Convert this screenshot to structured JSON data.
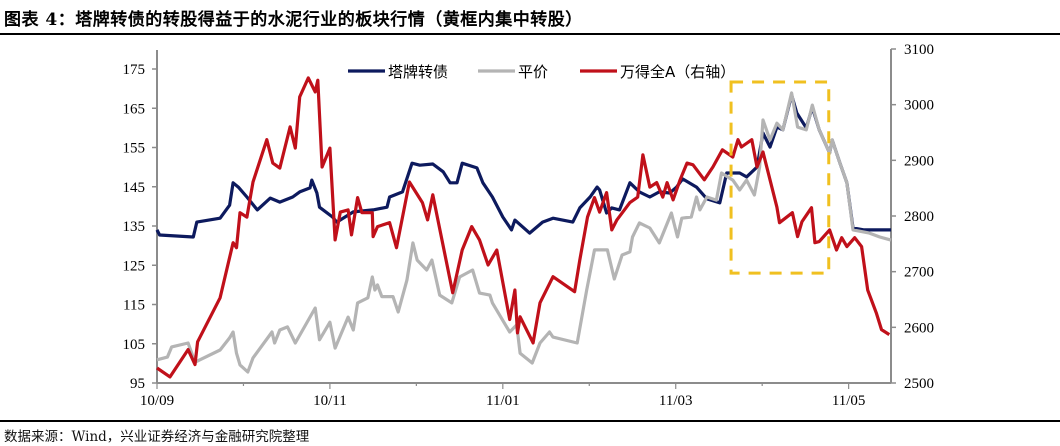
{
  "title": "图表 4：塔牌转债的转股得益于的水泥行业的板块行情（黄框内集中转股）",
  "source": "数据来源：Wind，兴业证券经济与金融研究院整理",
  "chart_data": {
    "type": "line",
    "title": "图表 4：塔牌转债的转股得益于的水泥行业的板块行情（黄框内集中转股）",
    "x_unit": "months since 2010/09",
    "x_range": [
      0,
      8.49
    ],
    "x_ticks": [
      {
        "value": 0,
        "label": "10/09"
      },
      {
        "value": 2,
        "label": "10/11"
      },
      {
        "value": 4,
        "label": "11/01"
      },
      {
        "value": 6,
        "label": "11/03"
      },
      {
        "value": 8,
        "label": "11/05"
      }
    ],
    "y_left": {
      "range": [
        95,
        175
      ],
      "ticks": [
        "95",
        "105",
        "115",
        "125",
        "135",
        "145",
        "155",
        "165",
        "175"
      ]
    },
    "y_right": {
      "range": [
        2500,
        3100
      ],
      "ticks": [
        "2500",
        "2600",
        "2700",
        "2800",
        "2900",
        "3000",
        "3100"
      ]
    },
    "grid": false,
    "legend_position": "top-center",
    "colors": {
      "bond": "#0d1a5e",
      "parity": "#b4b4b4",
      "index": "#c0101a",
      "box": "#f0c020"
    },
    "series": [
      {
        "name": "塔牌转债",
        "axis": "left",
        "color_key": "bond",
        "points": [
          [
            0,
            134.0
          ],
          [
            0.03,
            132.7
          ],
          [
            0.42,
            132.2
          ],
          [
            0.46,
            136.0
          ],
          [
            0.73,
            137.0
          ],
          [
            0.84,
            140.3
          ],
          [
            0.88,
            146.0
          ],
          [
            0.94,
            144.9
          ],
          [
            1.04,
            142.4
          ],
          [
            1.16,
            139.1
          ],
          [
            1.31,
            142.1
          ],
          [
            1.42,
            141.1
          ],
          [
            1.57,
            142.4
          ],
          [
            1.65,
            143.7
          ],
          [
            1.77,
            144.7
          ],
          [
            1.79,
            146.7
          ],
          [
            1.85,
            143.4
          ],
          [
            1.88,
            139.8
          ],
          [
            2.03,
            137.3
          ],
          [
            2.08,
            136.0
          ],
          [
            2.27,
            138.6
          ],
          [
            2.5,
            139.1
          ],
          [
            2.66,
            139.8
          ],
          [
            2.69,
            142.4
          ],
          [
            2.84,
            143.7
          ],
          [
            2.95,
            151.0
          ],
          [
            3.04,
            150.5
          ],
          [
            3.19,
            150.8
          ],
          [
            3.31,
            148.8
          ],
          [
            3.39,
            146.0
          ],
          [
            3.47,
            146.0
          ],
          [
            3.53,
            151.0
          ],
          [
            3.7,
            149.8
          ],
          [
            3.77,
            146.0
          ],
          [
            3.88,
            142.4
          ],
          [
            4.0,
            137.3
          ],
          [
            4.1,
            134.0
          ],
          [
            4.14,
            136.5
          ],
          [
            4.31,
            133.2
          ],
          [
            4.46,
            136.0
          ],
          [
            4.58,
            137.0
          ],
          [
            4.81,
            136.0
          ],
          [
            4.89,
            139.6
          ],
          [
            5.01,
            142.4
          ],
          [
            5.09,
            144.9
          ],
          [
            5.12,
            144.2
          ],
          [
            5.2,
            138.3
          ],
          [
            5.26,
            139.6
          ],
          [
            5.35,
            139.1
          ],
          [
            5.47,
            146.0
          ],
          [
            5.58,
            143.7
          ],
          [
            5.7,
            142.4
          ],
          [
            5.81,
            143.7
          ],
          [
            5.93,
            143.4
          ],
          [
            6.01,
            144.9
          ],
          [
            6.08,
            147.0
          ],
          [
            6.24,
            144.9
          ],
          [
            6.36,
            141.9
          ],
          [
            6.51,
            140.9
          ],
          [
            6.59,
            148.5
          ],
          [
            6.74,
            148.5
          ],
          [
            6.82,
            147.5
          ],
          [
            6.94,
            150.0
          ],
          [
            7.01,
            158.7
          ],
          [
            7.09,
            155.1
          ],
          [
            7.17,
            160.2
          ],
          [
            7.24,
            159.5
          ],
          [
            7.34,
            168.4
          ],
          [
            7.4,
            163.8
          ],
          [
            7.51,
            160.0
          ],
          [
            7.58,
            165.3
          ],
          [
            7.66,
            159.5
          ],
          [
            7.78,
            153.6
          ],
          [
            7.81,
            156.9
          ],
          [
            7.9,
            151.0
          ],
          [
            7.98,
            146.0
          ],
          [
            8.05,
            134.5
          ],
          [
            8.18,
            134.0
          ],
          [
            8.32,
            134.0
          ],
          [
            8.49,
            134.0
          ]
        ]
      },
      {
        "name": "平价",
        "axis": "left",
        "color_key": "parity",
        "points": [
          [
            0,
            100.9
          ],
          [
            0.12,
            101.6
          ],
          [
            0.17,
            104.2
          ],
          [
            0.36,
            105.2
          ],
          [
            0.44,
            100.3
          ],
          [
            0.73,
            103.4
          ],
          [
            0.84,
            106.5
          ],
          [
            0.88,
            108.0
          ],
          [
            0.92,
            102.6
          ],
          [
            0.96,
            99.6
          ],
          [
            1.05,
            97.8
          ],
          [
            1.11,
            101.4
          ],
          [
            1.33,
            108.0
          ],
          [
            1.36,
            105.2
          ],
          [
            1.42,
            108.5
          ],
          [
            1.51,
            109.3
          ],
          [
            1.6,
            105.2
          ],
          [
            1.83,
            114.1
          ],
          [
            1.88,
            106.0
          ],
          [
            2.0,
            110.5
          ],
          [
            2.06,
            103.9
          ],
          [
            2.21,
            111.8
          ],
          [
            2.27,
            108.5
          ],
          [
            2.32,
            115.4
          ],
          [
            2.44,
            116.7
          ],
          [
            2.49,
            122.0
          ],
          [
            2.52,
            118.7
          ],
          [
            2.55,
            120.0
          ],
          [
            2.6,
            117.0
          ],
          [
            2.73,
            117.0
          ],
          [
            2.79,
            113.1
          ],
          [
            2.89,
            121.2
          ],
          [
            2.96,
            130.7
          ],
          [
            3.01,
            126.3
          ],
          [
            3.12,
            123.8
          ],
          [
            3.18,
            126.3
          ],
          [
            3.27,
            117.4
          ],
          [
            3.41,
            115.4
          ],
          [
            3.5,
            122.0
          ],
          [
            3.65,
            123.8
          ],
          [
            3.73,
            117.9
          ],
          [
            3.85,
            117.4
          ],
          [
            3.88,
            115.4
          ],
          [
            4.08,
            108.0
          ],
          [
            4.16,
            109.8
          ],
          [
            4.2,
            102.6
          ],
          [
            4.34,
            100.1
          ],
          [
            4.43,
            105.2
          ],
          [
            4.54,
            108.0
          ],
          [
            4.58,
            106.7
          ],
          [
            4.86,
            105.2
          ],
          [
            4.97,
            118.7
          ],
          [
            5.06,
            128.9
          ],
          [
            5.21,
            128.9
          ],
          [
            5.29,
            121.5
          ],
          [
            5.38,
            127.6
          ],
          [
            5.47,
            128.4
          ],
          [
            5.5,
            132.2
          ],
          [
            5.58,
            135.8
          ],
          [
            5.7,
            134.5
          ],
          [
            5.81,
            130.7
          ],
          [
            5.95,
            138.3
          ],
          [
            6.02,
            132.2
          ],
          [
            6.07,
            137.0
          ],
          [
            6.18,
            137.3
          ],
          [
            6.24,
            142.4
          ],
          [
            6.28,
            139.1
          ],
          [
            6.36,
            142.4
          ],
          [
            6.47,
            141.6
          ],
          [
            6.53,
            148.5
          ],
          [
            6.66,
            146.7
          ],
          [
            6.74,
            144.2
          ],
          [
            6.82,
            146.7
          ],
          [
            6.91,
            142.9
          ],
          [
            6.97,
            150.0
          ],
          [
            7.01,
            162.0
          ],
          [
            7.09,
            156.9
          ],
          [
            7.17,
            161.2
          ],
          [
            7.24,
            159.5
          ],
          [
            7.34,
            168.9
          ],
          [
            7.41,
            160.2
          ],
          [
            7.51,
            159.5
          ],
          [
            7.58,
            165.8
          ],
          [
            7.66,
            159.5
          ],
          [
            7.78,
            153.6
          ],
          [
            7.81,
            156.9
          ],
          [
            7.9,
            151.0
          ],
          [
            7.98,
            146.0
          ],
          [
            8.05,
            134.0
          ],
          [
            8.24,
            133.2
          ],
          [
            8.36,
            132.2
          ],
          [
            8.49,
            131.4
          ]
        ]
      },
      {
        "name": "万得全A（右轴）",
        "axis": "right",
        "color_key": "index",
        "points": [
          [
            0,
            2527
          ],
          [
            0.15,
            2511
          ],
          [
            0.36,
            2560
          ],
          [
            0.44,
            2533
          ],
          [
            0.47,
            2574
          ],
          [
            0.73,
            2653
          ],
          [
            0.88,
            2752
          ],
          [
            0.92,
            2743
          ],
          [
            0.96,
            2806
          ],
          [
            1.04,
            2798
          ],
          [
            1.11,
            2861
          ],
          [
            1.27,
            2937
          ],
          [
            1.34,
            2895
          ],
          [
            1.42,
            2886
          ],
          [
            1.54,
            2960
          ],
          [
            1.6,
            2922
          ],
          [
            1.65,
            3014
          ],
          [
            1.75,
            3048
          ],
          [
            1.83,
            3023
          ],
          [
            1.86,
            3044
          ],
          [
            1.91,
            2888
          ],
          [
            2.0,
            2922
          ],
          [
            2.06,
            2757
          ],
          [
            2.12,
            2807
          ],
          [
            2.21,
            2811
          ],
          [
            2.25,
            2766
          ],
          [
            2.32,
            2833
          ],
          [
            2.37,
            2806
          ],
          [
            2.49,
            2806
          ],
          [
            2.5,
            2763
          ],
          [
            2.55,
            2781
          ],
          [
            2.69,
            2788
          ],
          [
            2.77,
            2743
          ],
          [
            2.92,
            2861
          ],
          [
            3.07,
            2824
          ],
          [
            3.13,
            2793
          ],
          [
            3.19,
            2838
          ],
          [
            3.42,
            2662
          ],
          [
            3.53,
            2739
          ],
          [
            3.64,
            2781
          ],
          [
            3.73,
            2757
          ],
          [
            3.83,
            2712
          ],
          [
            3.93,
            2739
          ],
          [
            4.08,
            2614
          ],
          [
            4.14,
            2667
          ],
          [
            4.17,
            2590
          ],
          [
            4.2,
            2619
          ],
          [
            4.35,
            2572
          ],
          [
            4.43,
            2644
          ],
          [
            4.58,
            2691
          ],
          [
            4.83,
            2664
          ],
          [
            4.89,
            2721
          ],
          [
            4.98,
            2798
          ],
          [
            5.06,
            2833
          ],
          [
            5.12,
            2807
          ],
          [
            5.2,
            2842
          ],
          [
            5.26,
            2775
          ],
          [
            5.32,
            2793
          ],
          [
            5.47,
            2824
          ],
          [
            5.56,
            2834
          ],
          [
            5.62,
            2910
          ],
          [
            5.7,
            2852
          ],
          [
            5.78,
            2860
          ],
          [
            5.85,
            2834
          ],
          [
            5.9,
            2860
          ],
          [
            5.97,
            2829
          ],
          [
            6.05,
            2865
          ],
          [
            6.13,
            2895
          ],
          [
            6.2,
            2892
          ],
          [
            6.33,
            2865
          ],
          [
            6.43,
            2888
          ],
          [
            6.54,
            2919
          ],
          [
            6.66,
            2906
          ],
          [
            6.72,
            2937
          ],
          [
            6.76,
            2924
          ],
          [
            6.88,
            2937
          ],
          [
            6.94,
            2888
          ],
          [
            7.01,
            2915
          ],
          [
            7.17,
            2816
          ],
          [
            7.2,
            2788
          ],
          [
            7.35,
            2806
          ],
          [
            7.41,
            2763
          ],
          [
            7.46,
            2790
          ],
          [
            7.57,
            2815
          ],
          [
            7.61,
            2752
          ],
          [
            7.66,
            2754
          ],
          [
            7.78,
            2775
          ],
          [
            7.86,
            2739
          ],
          [
            7.92,
            2761
          ],
          [
            7.98,
            2745
          ],
          [
            8.07,
            2761
          ],
          [
            8.15,
            2745
          ],
          [
            8.22,
            2667
          ],
          [
            8.32,
            2626
          ],
          [
            8.38,
            2596
          ],
          [
            8.47,
            2587
          ]
        ]
      }
    ],
    "annotations": [
      {
        "type": "dashed-box",
        "meaning": "集中转股",
        "color_key": "box",
        "x_range": [
          6.64,
          7.77
        ],
        "y_left_range": [
          123,
          171.7
        ]
      }
    ]
  }
}
